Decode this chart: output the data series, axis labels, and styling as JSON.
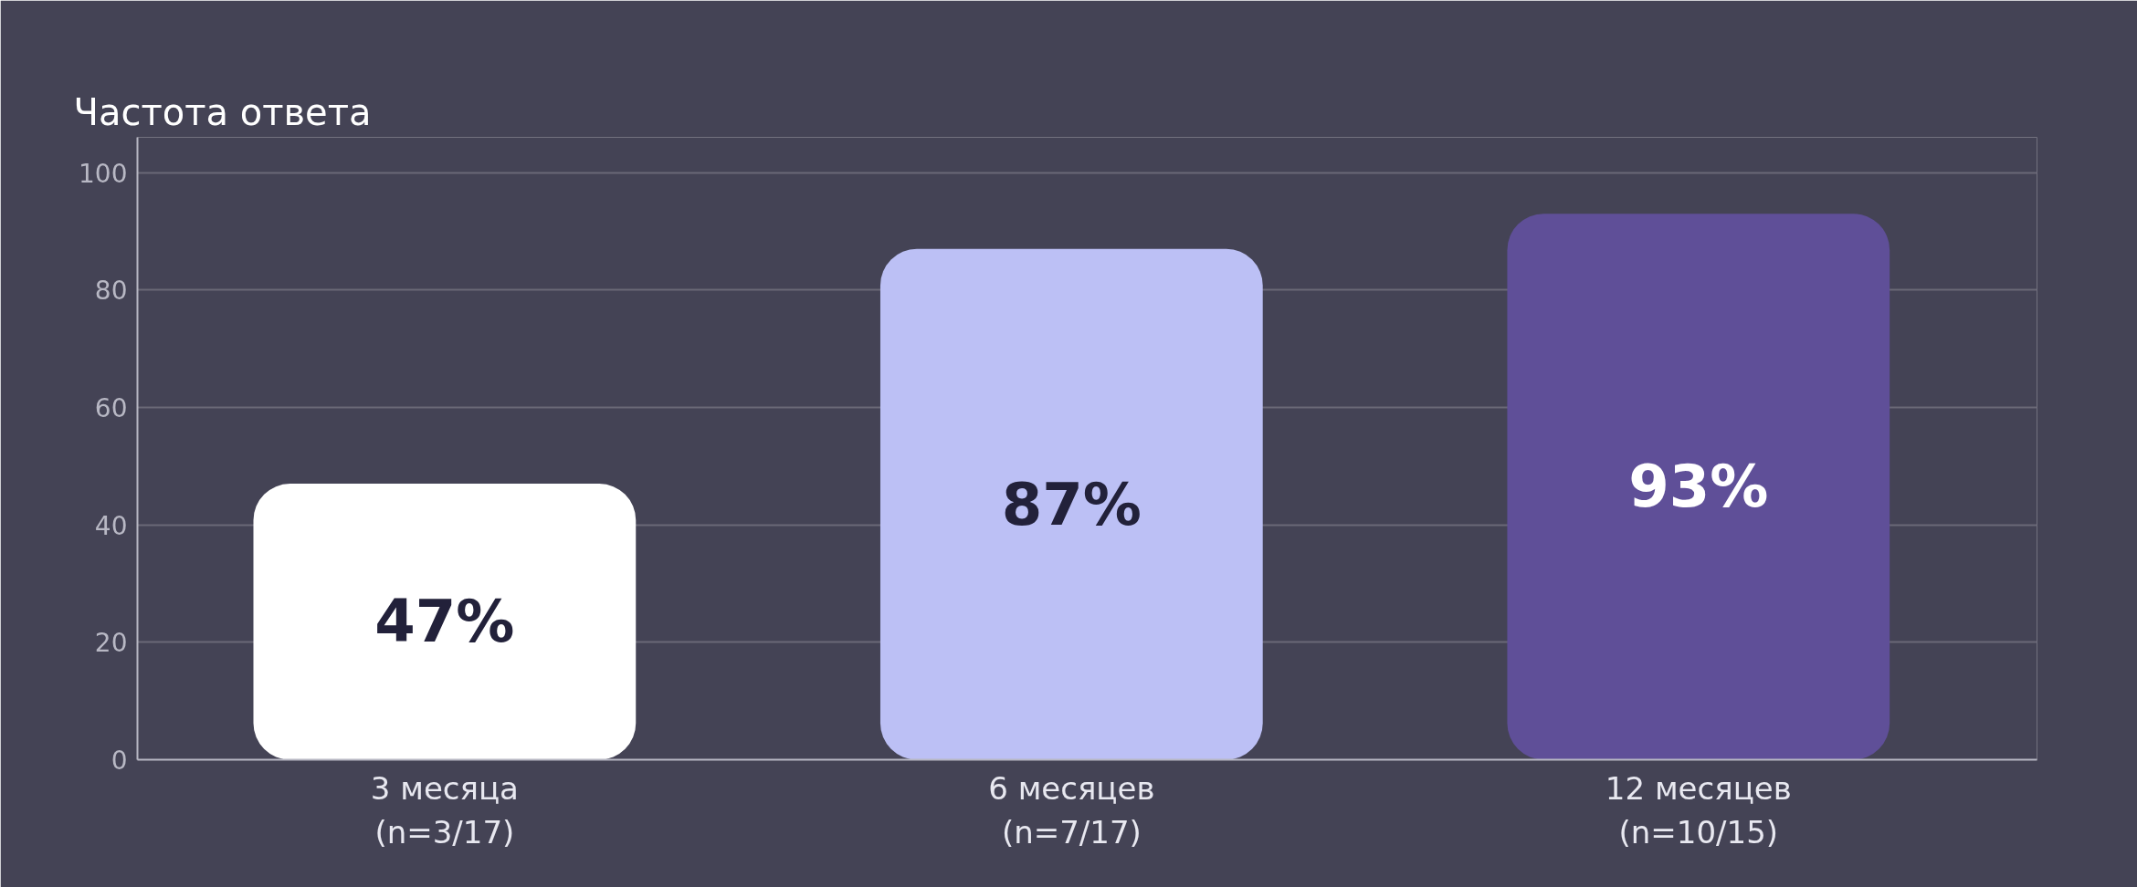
{
  "chart_data": {
    "type": "bar",
    "title": "Частота ответа",
    "categories": [
      "3 месяца\n(n=3/17)",
      "6 месяцев\n(n=7/17)",
      "12 месяцев\n(n=10/15)"
    ],
    "values": [
      47,
      87,
      93
    ],
    "colors": [
      "#ffffff",
      "#bcc0f5",
      "#5f4f98"
    ],
    "value_labels": [
      "47%",
      "87%",
      "93%"
    ],
    "ylim": [
      0,
      106
    ],
    "yticks": [
      0,
      20,
      40,
      60,
      80,
      100
    ],
    "grid": "y"
  }
}
